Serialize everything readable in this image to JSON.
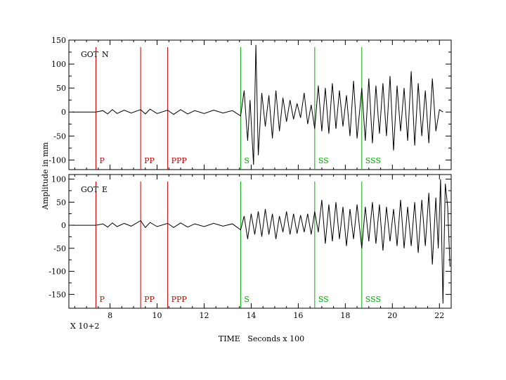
{
  "chart_data": {
    "type": "line",
    "xlabel": "TIME   Seconds x 100",
    "ylabel": "Amplitude in mm",
    "x_multiplier_note": "X 10+2",
    "xlim": [
      6.25,
      22.5
    ],
    "x_ticks": [
      8,
      10,
      12,
      14,
      16,
      18,
      20,
      22
    ],
    "colors": {
      "trace": "#000000",
      "p_phase": "#cc0000",
      "s_phase": "#00aa00"
    },
    "phases": [
      {
        "name": "P",
        "x": 7.4,
        "kind": "p"
      },
      {
        "name": "PP",
        "x": 9.3,
        "kind": "p"
      },
      {
        "name": "PPP",
        "x": 10.45,
        "kind": "p"
      },
      {
        "name": "S",
        "x": 13.55,
        "kind": "s"
      },
      {
        "name": "SS",
        "x": 16.7,
        "kind": "s"
      },
      {
        "name": "SSS",
        "x": 18.7,
        "kind": "s"
      }
    ],
    "panels": [
      {
        "station": "GOT",
        "component": "N",
        "ylim": [
          -120,
          150
        ],
        "y_ticks": [
          150,
          100,
          50,
          0,
          -50,
          -100
        ],
        "series": {
          "x": [
            6.4,
            7.4,
            7.7,
            7.9,
            8.1,
            8.3,
            8.6,
            8.9,
            9.3,
            9.5,
            9.7,
            10.0,
            10.45,
            10.7,
            11.0,
            11.3,
            11.6,
            12.0,
            12.4,
            12.8,
            13.2,
            13.55,
            13.7,
            13.85,
            13.95,
            14.1,
            14.2,
            14.3,
            14.45,
            14.6,
            14.75,
            14.9,
            15.05,
            15.2,
            15.35,
            15.5,
            15.65,
            15.8,
            15.95,
            16.1,
            16.25,
            16.4,
            16.55,
            16.7,
            16.85,
            17.0,
            17.15,
            17.3,
            17.45,
            17.6,
            17.75,
            17.9,
            18.05,
            18.2,
            18.35,
            18.5,
            18.7,
            18.85,
            19.0,
            19.15,
            19.3,
            19.45,
            19.6,
            19.75,
            19.9,
            20.05,
            20.2,
            20.35,
            20.5,
            20.65,
            20.8,
            20.95,
            21.1,
            21.25,
            21.4,
            21.55,
            21.7,
            21.85,
            22.0,
            22.15
          ],
          "y": [
            0,
            0,
            3,
            -4,
            5,
            -3,
            4,
            -2,
            5,
            -4,
            6,
            -3,
            4,
            -5,
            5,
            -4,
            3,
            -3,
            4,
            -2,
            3,
            -8,
            45,
            -60,
            25,
            -110,
            140,
            -90,
            40,
            -30,
            35,
            -55,
            45,
            -40,
            30,
            -20,
            25,
            -15,
            18,
            -12,
            40,
            -25,
            15,
            -35,
            55,
            -40,
            50,
            -45,
            60,
            -35,
            45,
            -30,
            35,
            -50,
            65,
            -55,
            50,
            -60,
            70,
            -65,
            55,
            -45,
            60,
            -50,
            75,
            -80,
            55,
            -40,
            50,
            -60,
            85,
            -70,
            60,
            -50,
            45,
            -65,
            70,
            -40,
            5,
            0
          ]
        }
      },
      {
        "station": "GOT",
        "component": "E",
        "ylim": [
          -180,
          110
        ],
        "y_ticks": [
          100,
          50,
          0,
          -50,
          -100,
          -150
        ],
        "series": {
          "x": [
            6.4,
            7.4,
            7.7,
            7.9,
            8.1,
            8.3,
            8.6,
            8.9,
            9.3,
            9.5,
            9.7,
            10.0,
            10.45,
            10.7,
            11.0,
            11.3,
            11.6,
            12.0,
            12.4,
            12.8,
            13.2,
            13.55,
            13.7,
            13.85,
            14.0,
            14.15,
            14.3,
            14.45,
            14.6,
            14.75,
            14.9,
            15.05,
            15.2,
            15.35,
            15.5,
            15.65,
            15.8,
            15.95,
            16.1,
            16.25,
            16.4,
            16.55,
            16.7,
            16.85,
            17.0,
            17.15,
            17.3,
            17.45,
            17.6,
            17.75,
            17.9,
            18.05,
            18.2,
            18.35,
            18.5,
            18.7,
            18.85,
            19.0,
            19.15,
            19.3,
            19.45,
            19.6,
            19.75,
            19.9,
            20.05,
            20.2,
            20.35,
            20.5,
            20.65,
            20.8,
            20.95,
            21.1,
            21.25,
            21.4,
            21.55,
            21.7,
            21.85,
            21.95,
            22.05,
            22.15,
            22.25,
            22.35,
            22.45
          ],
          "y": [
            0,
            0,
            3,
            -4,
            5,
            -3,
            4,
            -2,
            10,
            -5,
            6,
            -3,
            4,
            -5,
            5,
            -4,
            3,
            -3,
            4,
            -2,
            3,
            -10,
            20,
            -30,
            25,
            -20,
            30,
            -25,
            35,
            -20,
            25,
            -30,
            20,
            -15,
            30,
            -20,
            25,
            -18,
            22,
            -15,
            25,
            -20,
            30,
            -15,
            55,
            -40,
            45,
            -35,
            50,
            -30,
            40,
            -45,
            35,
            -30,
            45,
            -50,
            40,
            -35,
            50,
            -40,
            45,
            -55,
            40,
            -35,
            35,
            -45,
            55,
            -50,
            40,
            -45,
            50,
            -60,
            55,
            -45,
            70,
            -85,
            60,
            -50,
            100,
            -170,
            90,
            40,
            -90
          ]
        }
      }
    ]
  }
}
